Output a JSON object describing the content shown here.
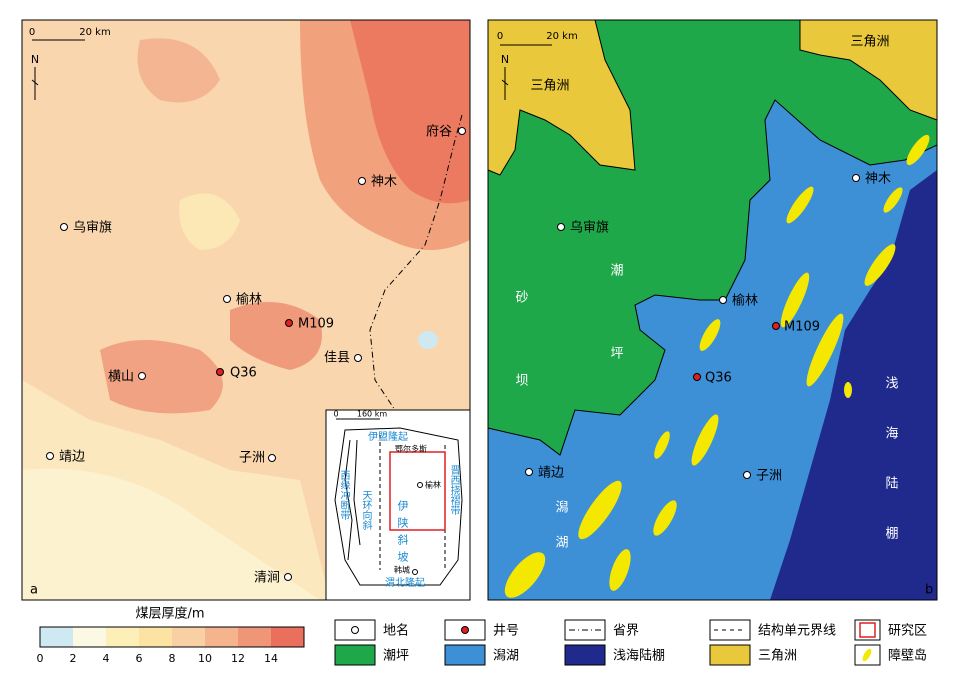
{
  "panel_a": {
    "label": "a",
    "scale": [
      "0",
      "20 km"
    ],
    "north": "N",
    "places": [
      "府谷",
      "神木",
      "乌审旗",
      "榆林",
      "佳县",
      "横山",
      "子洲",
      "靖边",
      "清涧"
    ],
    "wells": [
      "M109",
      "Q36"
    ],
    "inset": {
      "scale": [
        "0",
        "160 km"
      ],
      "labels": [
        "伊盟隆起",
        "鄂尔多斯",
        "西缘冲断带",
        "天环向斜",
        "榆林",
        "伊陕斜坡",
        "晋西挠褶带",
        "韩城",
        "渭北隆起"
      ]
    }
  },
  "panel_b": {
    "label": "b",
    "scale": [
      "0",
      "20 km"
    ],
    "north": "N",
    "places": [
      "神木",
      "乌审旗",
      "榆林",
      "子洲",
      "靖边"
    ],
    "wells": [
      "M109",
      "Q36"
    ],
    "facies": [
      "三角洲",
      "三角洲",
      "潮坪",
      "砂坝",
      "潟湖",
      "浅海陆棚"
    ]
  },
  "colorbar": {
    "title": "煤层厚度/m",
    "ticks": [
      0,
      2,
      4,
      6,
      8,
      10,
      12,
      14
    ],
    "colors": [
      "#cfe9f2",
      "#fbf8e4",
      "#fcefb8",
      "#fde3a3",
      "#f9cfa4",
      "#f5b48d",
      "#ef9578",
      "#ea6f5c"
    ]
  },
  "legend": [
    "地名",
    "井号",
    "省界",
    "结构单元界线",
    "研究区",
    "潮坪",
    "潟湖",
    "浅海陆棚",
    "三角洲",
    "障壁岛"
  ]
}
